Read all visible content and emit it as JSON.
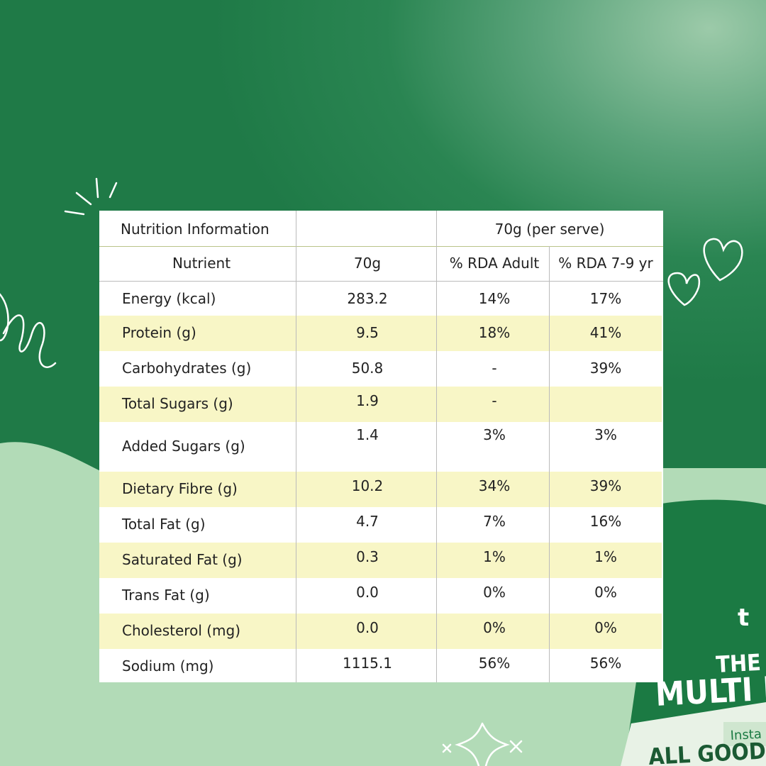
{
  "table": {
    "title": "Nutrition Information",
    "serve": "70g (per serve)",
    "columns": [
      "Nutrient",
      "70g",
      "% RDA Adult",
      "% RDA 7-9 yr"
    ],
    "rows": [
      [
        "Energy (kcal)",
        "283.2",
        "14%",
        "17%"
      ],
      [
        "Protein (g)",
        "9.5",
        "18%",
        "41%"
      ],
      [
        "Carbohydrates (g)",
        "50.8",
        "-",
        "39%"
      ],
      [
        "Total Sugars (g)",
        "1.9",
        "-",
        null
      ],
      [
        "Added Sugars (g)",
        "1.4",
        "3%",
        "3%"
      ],
      [
        "Dietary Fibre (g)",
        "10.2",
        "34%",
        "39%"
      ],
      [
        "Total Fat (g)",
        "4.7",
        "7%",
        "16%"
      ],
      [
        "Saturated Fat (g)",
        "0.3",
        "1%",
        "1%"
      ],
      [
        "Trans Fat (g)",
        "0.0",
        "0%",
        "0%"
      ],
      [
        "Cholesterol (mg)",
        "0.0",
        "0%",
        "0%"
      ],
      [
        "Sodium (mg)",
        "1115.1",
        "56%",
        "56%"
      ]
    ]
  },
  "package": {
    "brand": "t",
    "lines": [
      "THE H",
      "MULTI MI",
      "Insta",
      "ALL GOOD IN"
    ]
  }
}
